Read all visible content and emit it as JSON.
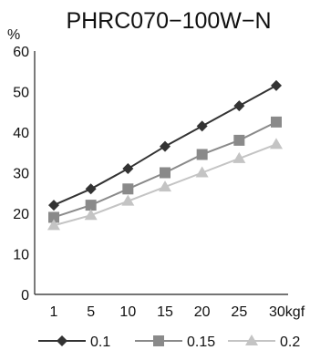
{
  "chart_data": {
    "type": "line",
    "title": "PHRC070−100W−N",
    "ylabel": "%",
    "xlabel": "",
    "categories": [
      "1",
      "5",
      "10",
      "15",
      "20",
      "25",
      "30kgf"
    ],
    "ylim": [
      0,
      60
    ],
    "yticks": [
      "0",
      "10",
      "20",
      "30",
      "40",
      "50",
      "60"
    ],
    "grid": false,
    "legend_position": "bottom",
    "series": [
      {
        "name": "0.1",
        "values": [
          22,
          26,
          31,
          36.5,
          41.5,
          46.5,
          51.5
        ],
        "color": "#333333",
        "marker": "diamond"
      },
      {
        "name": "0.15",
        "values": [
          19,
          22,
          26,
          30,
          34.5,
          38,
          42.5
        ],
        "color": "#8a8a8a",
        "marker": "square"
      },
      {
        "name": "0.2",
        "values": [
          17,
          19.5,
          23,
          26.5,
          30,
          33.5,
          37
        ],
        "color": "#c4c4c4",
        "marker": "triangle"
      }
    ]
  }
}
